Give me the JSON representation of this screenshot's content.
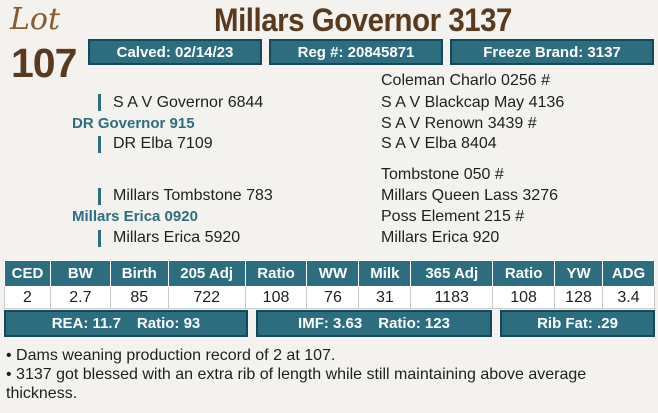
{
  "lot": {
    "word": "Lot",
    "number": "107"
  },
  "animal": {
    "name": "Millars Governor 3137"
  },
  "info_bar": {
    "calved": "Calved: 02/14/23",
    "reg": "Reg #: 20845871",
    "freeze_brand": "Freeze Brand: 3137"
  },
  "pedigree": {
    "sire": {
      "name": "DR Governor 915",
      "sire": "S A V Governor 6844",
      "dam": "DR Elba 7109",
      "ss": "Coleman Charlo 0256 #",
      "sd": "S A V Blackcap May 4136",
      "ds": "S A V Renown 3439 #",
      "dd": "S A V Elba 8404"
    },
    "dam": {
      "name": "Millars Erica 0920",
      "sire": "Millars Tombstone 783",
      "dam": "Millars Erica 5920",
      "ss": "Tombstone 050 #",
      "sd": "Millars Queen Lass 3276",
      "ds": "Poss Element 215 #",
      "dd": "Millars Erica 920"
    }
  },
  "epd": {
    "headers": [
      "CED",
      "BW",
      "Birth",
      "205 Adj",
      "Ratio",
      "WW",
      "Milk",
      "365 Adj",
      "Ratio",
      "YW",
      "ADG"
    ],
    "values": [
      "2",
      "2.7",
      "85",
      "722",
      "108",
      "76",
      "31",
      "1183",
      "108",
      "128",
      "3.4"
    ]
  },
  "carcass": {
    "rea": "REA: 11.7",
    "rea_ratio": "Ratio: 93",
    "imf": "IMF: 3.63",
    "imf_ratio": "Ratio: 123",
    "rib_fat": "Rib Fat: .29"
  },
  "notes": [
    "• Dams weaning production record of 2 at 107.",
    "• 3137 got blessed with an extra rib of length while still maintaining above average thickness."
  ],
  "colors": {
    "teal": "#2c6e7f",
    "brown": "#5a3a1e"
  }
}
